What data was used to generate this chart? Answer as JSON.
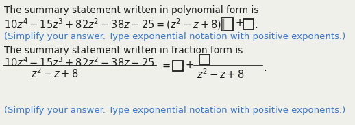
{
  "bg_color": "#f0f0eb",
  "text_color": "#1c1c1c",
  "blue_color": "#3a78c9",
  "math_color": "#1c1c1c",
  "font_size_text": 9.8,
  "font_size_math": 10.5,
  "font_size_hint": 9.5,
  "line1": "The summary statement written in polynomial form is",
  "hint1": "(Simplify your answer. Type exponential notation with positive exponents.)",
  "line4": "The summary statement written in fraction form is",
  "hint2": "(Simplify your answer. Type exponential notation with positive exponents.)"
}
